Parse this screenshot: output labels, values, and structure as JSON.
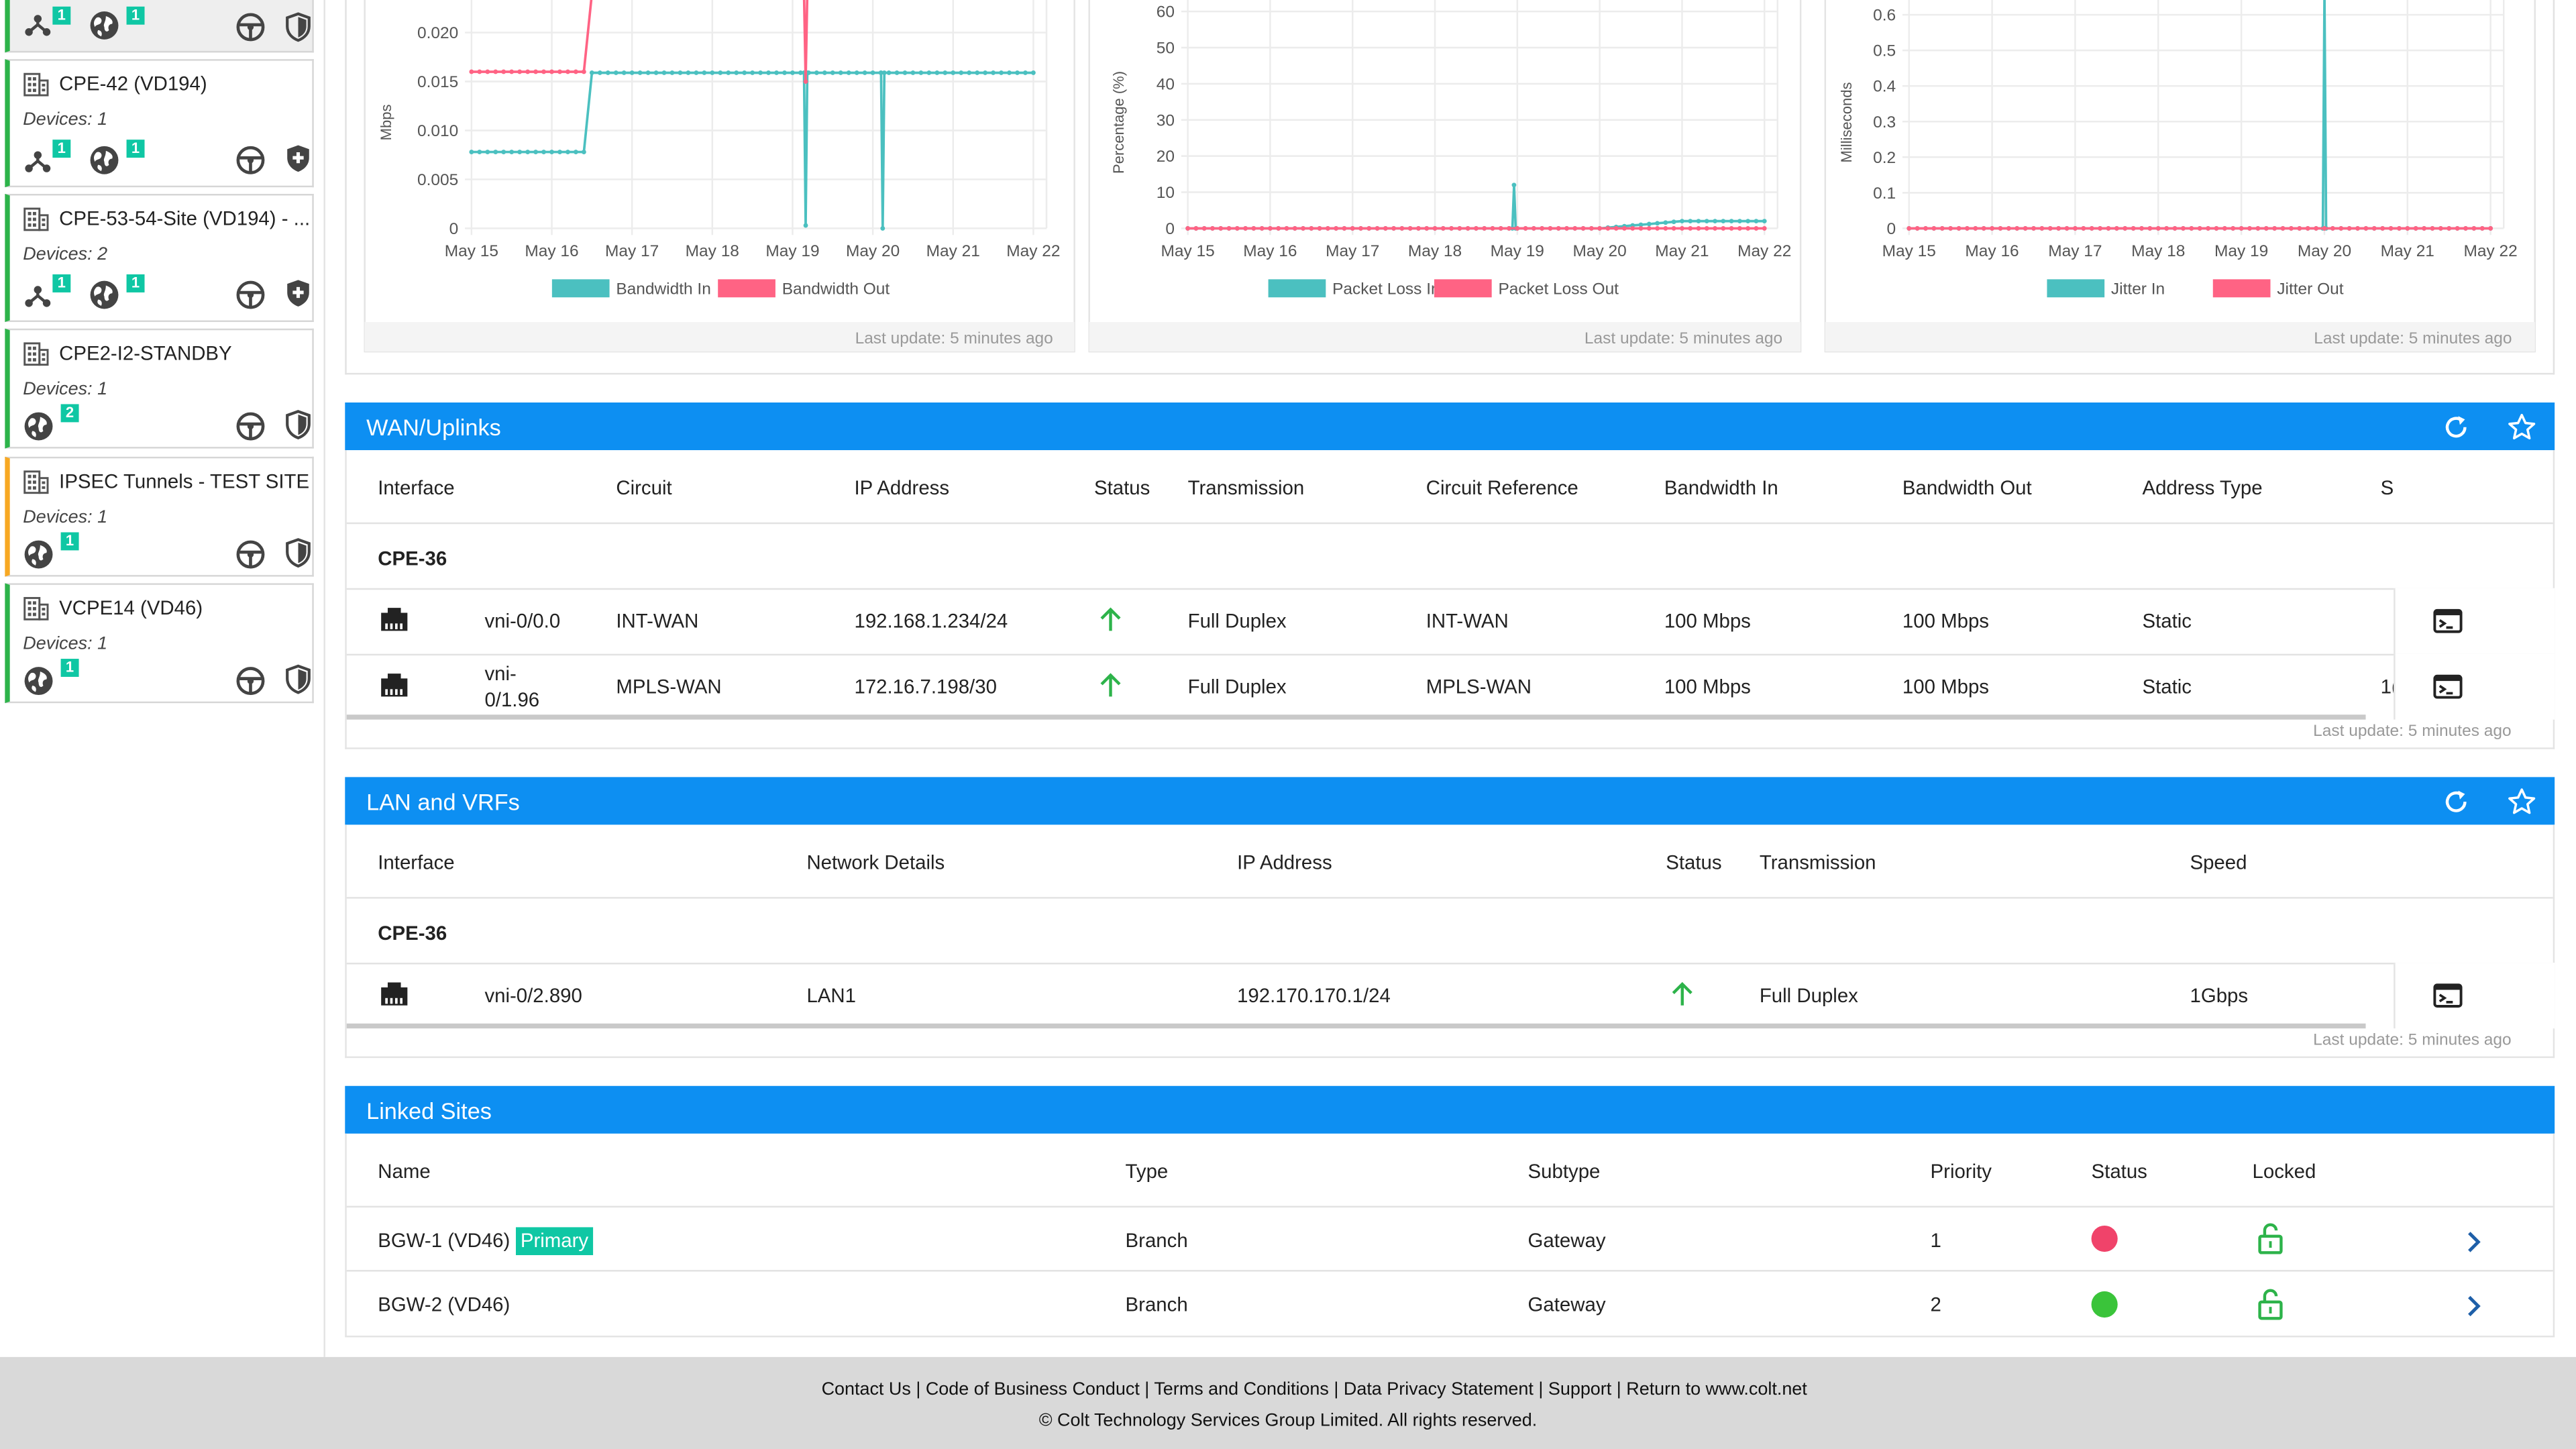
{
  "sidebar": {
    "top_card": {
      "badges": [
        "1",
        "1"
      ]
    },
    "sites": [
      {
        "name": "CPE-42 (VD194)",
        "devices": "Devices: 1",
        "badges": [
          "1",
          "1"
        ]
      },
      {
        "name": "CPE-53-54-Site (VD194) - ...",
        "devices": "Devices: 2",
        "badges": [
          "1",
          "1"
        ]
      },
      {
        "name": "CPE2-I2-STANDBY",
        "devices": "Devices: 1",
        "badges": [
          "2"
        ]
      },
      {
        "name": "IPSEC Tunnels - TEST SITE",
        "devices": "Devices: 1",
        "badges": [
          "1"
        ]
      },
      {
        "name": "VCPE14 (VD46)",
        "devices": "Devices: 1",
        "badges": [
          "1"
        ]
      }
    ]
  },
  "charts": {
    "x_ticks": [
      "May 15",
      "May 16",
      "May 17",
      "May 18",
      "May 19",
      "May 20",
      "May 21",
      "May 22"
    ],
    "last_update": "Last update: 5 minutes ago"
  },
  "chart_data": [
    {
      "type": "line",
      "ylabel": "Mbps",
      "yticks": [
        "0",
        "0.005",
        "0.010",
        "0.015",
        "0.020"
      ],
      "ylim": [
        0,
        0.024
      ],
      "legend": "bottom",
      "x": [
        "May 15",
        "May 16",
        "May 17",
        "May 18",
        "May 19",
        "May 20",
        "May 21",
        "May 22"
      ],
      "series": [
        {
          "name": "Bandwidth In",
          "color": "#4bc0c0",
          "values": [
            0.0078,
            0.0078,
            0.0159,
            0.0159,
            0.0159,
            0.0159,
            0.0158,
            0.0159
          ],
          "dips": [
            {
              "x": "May 19",
              "value": 0.0003
            },
            {
              "x": "May 20",
              "value": 0.0
            }
          ]
        },
        {
          "name": "Bandwidth Out",
          "color": "#ff6384",
          "values": [
            0.016,
            0.016,
            0.024,
            0.024,
            0.024,
            0.024,
            0.024,
            0.024
          ],
          "dips": [
            {
              "x": "May 19",
              "value": 0.015
            }
          ]
        }
      ]
    },
    {
      "type": "line",
      "ylabel": "Percentage (%)",
      "yticks": [
        "0",
        "10",
        "20",
        "30",
        "40",
        "50",
        "60"
      ],
      "ylim": [
        0,
        65
      ],
      "legend": "bottom",
      "x": [
        "May 15",
        "May 16",
        "May 17",
        "May 18",
        "May 19",
        "May 20",
        "May 21",
        "May 22"
      ],
      "series": [
        {
          "name": "Packet Loss In",
          "color": "#4bc0c0",
          "values": [
            0,
            0,
            0,
            0,
            0,
            0,
            2,
            2
          ],
          "spikes": [
            {
              "x": "May 19",
              "value": 12
            }
          ]
        },
        {
          "name": "Packet Loss Out",
          "color": "#ff6384",
          "values": [
            0,
            0,
            0,
            0,
            0,
            0,
            0,
            0
          ]
        }
      ]
    },
    {
      "type": "line",
      "ylabel": "Milliseconds",
      "yticks": [
        "0",
        "0.1",
        "0.2",
        "0.3",
        "0.4",
        "0.5",
        "0.6"
      ],
      "ylim": [
        0,
        0.66
      ],
      "legend": "bottom",
      "x": [
        "May 15",
        "May 16",
        "May 17",
        "May 18",
        "May 19",
        "May 20",
        "May 21",
        "May 22"
      ],
      "series": [
        {
          "name": "Jitter In",
          "color": "#4bc0c0",
          "values": [
            0,
            0,
            0,
            0,
            0,
            0,
            0,
            0
          ],
          "spikes": [
            {
              "x": "May 20",
              "value": 0.66
            }
          ]
        },
        {
          "name": "Jitter Out",
          "color": "#ff6384",
          "values": [
            0,
            0,
            0,
            0,
            0,
            0,
            0,
            0
          ]
        }
      ]
    }
  ],
  "wan": {
    "title": "WAN/Uplinks",
    "headers": [
      "Interface",
      "Circuit",
      "IP Address",
      "Status",
      "Transmission",
      "Circuit Reference",
      "Bandwidth In",
      "Bandwidth Out",
      "Address Type",
      "S"
    ],
    "group": "CPE-36",
    "rows": [
      {
        "interface": "vni-0/0.0",
        "circuit": "INT-WAN",
        "ip": "192.168.1.234/24",
        "transmission": "Full Duplex",
        "circuit_ref": "INT-WAN",
        "bw_in": "100 Mbps",
        "bw_out": "100 Mbps",
        "addr_type": "Static",
        "extra": ""
      },
      {
        "interface_l1": "vni-",
        "interface_l2": "0/1.96",
        "circuit": "MPLS-WAN",
        "ip": "172.16.7.198/30",
        "transmission": "Full Duplex",
        "circuit_ref": "MPLS-WAN",
        "bw_in": "100 Mbps",
        "bw_out": "100 Mbps",
        "addr_type": "Static",
        "extra": "1("
      }
    ],
    "last_update": "Last update: 5 minutes ago"
  },
  "lan": {
    "title": "LAN and VRFs",
    "headers": [
      "Interface",
      "Network Details",
      "IP Address",
      "Status",
      "Transmission",
      "Speed"
    ],
    "group": "CPE-36",
    "rows": [
      {
        "interface": "vni-0/2.890",
        "network": "LAN1",
        "ip": "192.170.170.1/24",
        "transmission": "Full Duplex",
        "speed": "1Gbps"
      }
    ],
    "last_update": "Last update: 5 minutes ago"
  },
  "linked": {
    "title": "Linked Sites",
    "headers": [
      "Name",
      "Type",
      "Subtype",
      "Priority",
      "Status",
      "Locked"
    ],
    "rows": [
      {
        "name": "BGW-1 (VD46)",
        "badge": "Primary",
        "type": "Branch",
        "subtype": "Gateway",
        "priority": "1",
        "status_color": "#f0436a"
      },
      {
        "name": "BGW-2 (VD46)",
        "badge": "",
        "type": "Branch",
        "subtype": "Gateway",
        "priority": "2",
        "status_color": "#3ac43a"
      }
    ]
  },
  "footer": {
    "links": [
      "Contact Us",
      "Code of Business Conduct",
      "Terms and Conditions",
      "Data Privacy Statement",
      "Support",
      "Return to www.colt.net"
    ],
    "copyright": "© Colt Technology Services Group Limited. All rights reserved."
  },
  "colors": {
    "accent": "#0d8ff2",
    "teal": "#4bc0c0",
    "pink": "#ff6384",
    "status_up": "#2db34a",
    "badge": "#0fc7a4"
  }
}
